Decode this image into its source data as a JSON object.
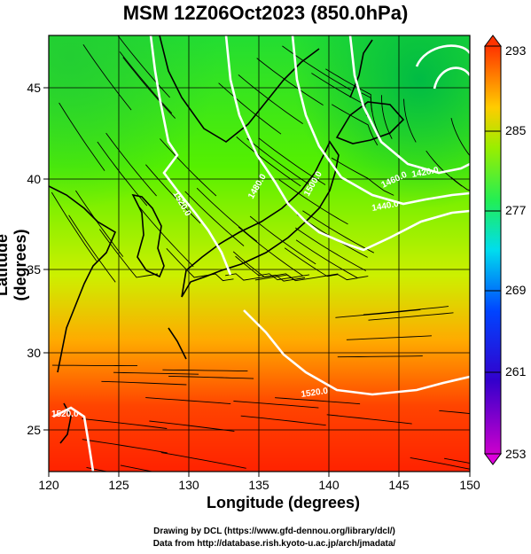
{
  "title": "MSM 12Z06Oct2023 (850.0hPa)",
  "xlabel": "Longitude (degrees)",
  "ylabel": "Latitude  (degrees)",
  "credit_line1": "Drawing by DCL (https://www.gfd-dennou.org/library/dcl/)",
  "credit_line2": "Data from http://database.rish.kyoto-u.ac.jp/arch/jmadata/",
  "map": {
    "lon_range": [
      120,
      150
    ],
    "lat_range": [
      22.4,
      47.6
    ],
    "lon_ticks": [
      "120",
      "125",
      "130",
      "135",
      "140",
      "145",
      "150"
    ],
    "lat_ticks": [
      "25",
      "30",
      "35",
      "40",
      "45"
    ],
    "contour_labels": [
      "1520.0",
      "1480.0",
      "1500.0",
      "1460.0",
      "1440.0",
      "1420.0",
      "1520.0",
      "1520.0"
    ],
    "colors": {
      "warm": "#ff3300",
      "mid": "#33ff00",
      "cool": "#00cc33",
      "contour": "#ffffff",
      "streamline": "#000000"
    }
  },
  "colorbar": {
    "ticks": [
      "293",
      "285",
      "277",
      "269",
      "261",
      "253"
    ],
    "range": [
      253,
      293
    ],
    "colors": [
      "#cc00cc",
      "#0000cc",
      "#00ccff",
      "#33ff00",
      "#ffcc00",
      "#ff3300"
    ]
  }
}
